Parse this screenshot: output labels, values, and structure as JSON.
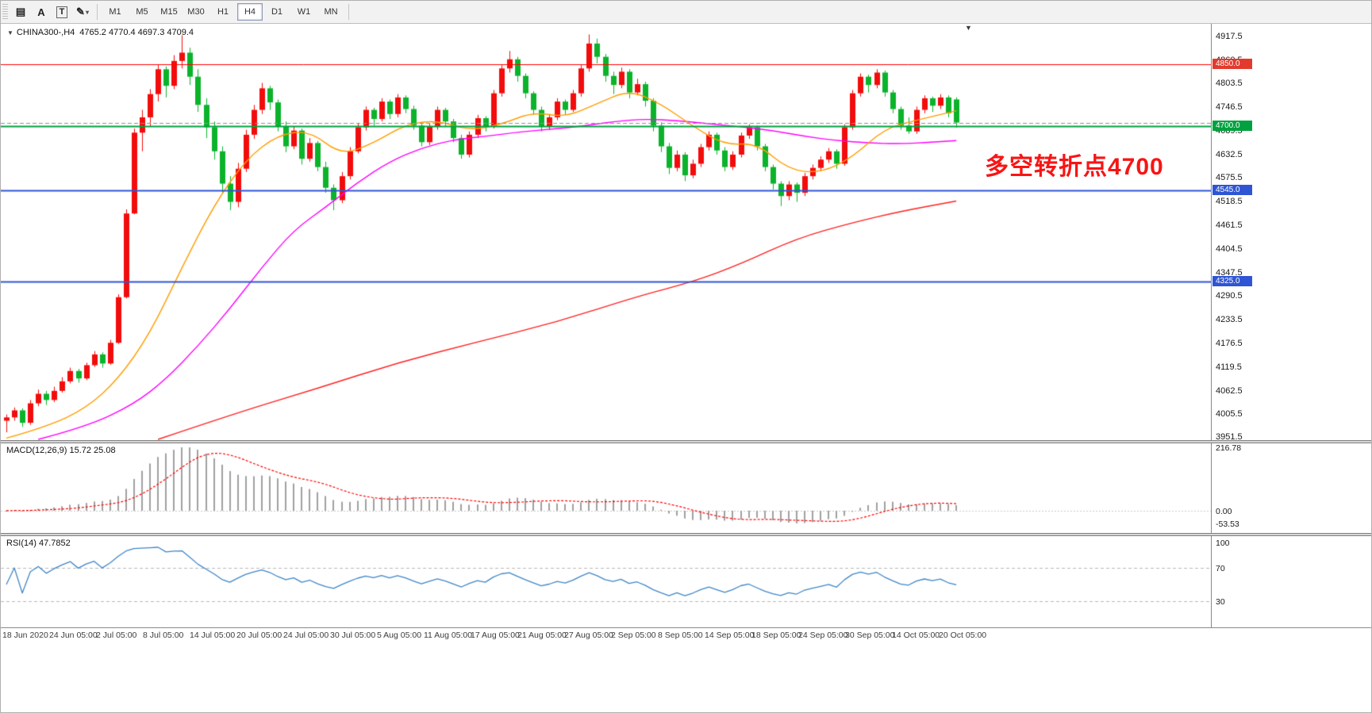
{
  "toolbar": {
    "tools": [
      {
        "name": "chart-grid-tool",
        "glyph": "▤"
      },
      {
        "name": "label-tool",
        "glyph": "A"
      },
      {
        "name": "text-tool",
        "glyph": "T",
        "boxed": true
      },
      {
        "name": "shapes-tool",
        "glyph": "✎",
        "caret": "▾"
      }
    ],
    "timeframes": [
      "M1",
      "M5",
      "M15",
      "M30",
      "H1",
      "H4",
      "D1",
      "W1",
      "MN"
    ],
    "active_timeframe": "H4"
  },
  "chart_header": {
    "collapse_icon": "▼",
    "symbol": "CHINA300-,H4",
    "ohlc": "4765.2 4770.4 4697.3 4709.4"
  },
  "annotation": {
    "text": "多空转折点4700",
    "color": "#f81414"
  },
  "price_axis": {
    "ticks": [
      "4917.5",
      "4860.5",
      "4803.5",
      "4746.5",
      "4689.5",
      "4632.5",
      "4575.5",
      "4518.5",
      "4461.5",
      "4404.5",
      "4347.5",
      "4290.5",
      "4233.5",
      "4176.5",
      "4119.5",
      "4062.5",
      "4005.5",
      "3951.5"
    ],
    "badges": [
      {
        "label": "4850.0",
        "price": 4850,
        "color": "#e23b2e"
      },
      {
        "label": "4700.0",
        "price": 4700,
        "color": "#00a13e"
      },
      {
        "label": "4545.0",
        "price": 4545,
        "color": "#2f55d4"
      },
      {
        "label": "4325.0",
        "price": 4325,
        "color": "#2f55d4"
      }
    ]
  },
  "time_axis": {
    "labels": [
      "18 Jun 2020",
      "24 Jun 05:00",
      "2 Jul 05:00",
      "8 Jul 05:00",
      "14 Jul 05:00",
      "20 Jul 05:00",
      "24 Jul 05:00",
      "30 Jul 05:00",
      "5 Aug 05:00",
      "11 Aug 05:00",
      "17 Aug 05:00",
      "21 Aug 05:00",
      "27 Aug 05:00",
      "2 Sep 05:00",
      "8 Sep 05:00",
      "14 Sep 05:00",
      "18 Sep 05:00",
      "24 Sep 05:00",
      "30 Sep 05:00",
      "14 Oct 05:00",
      "20 Oct 05:00"
    ]
  },
  "macd_panel": {
    "label": "MACD(12,26,9) 15.72 25.08",
    "axis_top": "216.78",
    "axis_zero": "0.00",
    "axis_bottom": "-53.53"
  },
  "rsi_panel": {
    "label": "RSI(14) 47.7852",
    "axis": [
      "100",
      "70",
      "30"
    ],
    "levels": [
      70,
      30
    ]
  },
  "colors": {
    "up": "#f20c0c",
    "down": "#0bb32a",
    "macd_hist": "#a0a0a0",
    "macd_signal": "#ff0000",
    "rsi_line": "#3e86c8",
    "level_dash": "#b8b8b8"
  },
  "chart_data": {
    "type": "candlestick",
    "symbol": "CHINA300-",
    "timeframe": "H4",
    "last_ohlc": {
      "open": 4765.2,
      "high": 4770.4,
      "low": 4697.3,
      "close": 4709.4
    },
    "y_range": [
      3945,
      4940
    ],
    "horizontal_lines": [
      {
        "price": 4850,
        "color": "#ff0000",
        "width": 1
      },
      {
        "price": 4709.4,
        "color": "#909090",
        "width": 1,
        "dash": true
      },
      {
        "price": 4700,
        "color": "#00a13e",
        "width": 2
      },
      {
        "price": 4545,
        "color": "#2f55d4",
        "width": 2
      },
      {
        "price": 4325,
        "color": "#2f55d4",
        "width": 2
      }
    ],
    "moving_averages": [
      {
        "name": "ma-fast",
        "color": "#ff9d00",
        "points": [
          [
            0,
            3948
          ],
          [
            5,
            3975
          ],
          [
            10,
            4020
          ],
          [
            14,
            4090
          ],
          [
            18,
            4200
          ],
          [
            22,
            4360
          ],
          [
            26,
            4510
          ],
          [
            30,
            4620
          ],
          [
            34,
            4680
          ],
          [
            38,
            4690
          ],
          [
            42,
            4630
          ],
          [
            46,
            4660
          ],
          [
            50,
            4705
          ],
          [
            54,
            4715
          ],
          [
            58,
            4690
          ],
          [
            62,
            4705
          ],
          [
            66,
            4735
          ],
          [
            70,
            4722
          ],
          [
            74,
            4755
          ],
          [
            78,
            4788
          ],
          [
            82,
            4755
          ],
          [
            86,
            4700
          ],
          [
            90,
            4655
          ],
          [
            94,
            4660
          ],
          [
            98,
            4595
          ],
          [
            102,
            4588
          ],
          [
            106,
            4625
          ],
          [
            110,
            4695
          ],
          [
            114,
            4715
          ],
          [
            119,
            4738
          ]
        ]
      },
      {
        "name": "ma-mid",
        "color": "#ff00ff",
        "points": [
          [
            4,
            3945
          ],
          [
            10,
            3975
          ],
          [
            16,
            4030
          ],
          [
            20,
            4090
          ],
          [
            24,
            4170
          ],
          [
            28,
            4260
          ],
          [
            32,
            4360
          ],
          [
            36,
            4450
          ],
          [
            40,
            4505
          ],
          [
            44,
            4565
          ],
          [
            48,
            4615
          ],
          [
            52,
            4648
          ],
          [
            56,
            4668
          ],
          [
            60,
            4676
          ],
          [
            64,
            4686
          ],
          [
            68,
            4693
          ],
          [
            72,
            4700
          ],
          [
            76,
            4712
          ],
          [
            80,
            4718
          ],
          [
            84,
            4714
          ],
          [
            88,
            4707
          ],
          [
            92,
            4699
          ],
          [
            96,
            4690
          ],
          [
            100,
            4676
          ],
          [
            104,
            4666
          ],
          [
            108,
            4660
          ],
          [
            112,
            4658
          ],
          [
            116,
            4662
          ],
          [
            119,
            4666
          ]
        ]
      },
      {
        "name": "ma-slow",
        "color": "#ff2020",
        "points": [
          [
            19,
            3945
          ],
          [
            29,
            4010
          ],
          [
            39,
            4068
          ],
          [
            49,
            4130
          ],
          [
            59,
            4180
          ],
          [
            69,
            4228
          ],
          [
            79,
            4290
          ],
          [
            86,
            4325
          ],
          [
            92,
            4368
          ],
          [
            99,
            4430
          ],
          [
            106,
            4468
          ],
          [
            112,
            4495
          ],
          [
            119,
            4520
          ]
        ]
      }
    ],
    "indicators": {
      "macd": {
        "params": [
          12,
          26,
          9
        ],
        "values": [
          15.72,
          25.08
        ]
      },
      "rsi": {
        "params": [
          14
        ],
        "value": 47.7852
      }
    },
    "candles": [
      [
        3990,
        4005,
        3962,
        3998
      ],
      [
        3998,
        4022,
        3990,
        4015
      ],
      [
        4015,
        4020,
        3975,
        3985
      ],
      [
        3985,
        4040,
        3980,
        4032
      ],
      [
        4032,
        4065,
        4025,
        4055
      ],
      [
        4055,
        4062,
        4028,
        4040
      ],
      [
        4040,
        4072,
        4035,
        4062
      ],
      [
        4062,
        4095,
        4058,
        4085
      ],
      [
        4085,
        4118,
        4080,
        4110
      ],
      [
        4110,
        4115,
        4082,
        4092
      ],
      [
        4092,
        4130,
        4088,
        4124
      ],
      [
        4124,
        4158,
        4120,
        4150
      ],
      [
        4150,
        4155,
        4118,
        4128
      ],
      [
        4128,
        4185,
        4125,
        4178
      ],
      [
        4178,
        4295,
        4175,
        4288
      ],
      [
        4288,
        4500,
        4285,
        4490
      ],
      [
        4490,
        4695,
        4488,
        4685
      ],
      [
        4685,
        4740,
        4640,
        4722
      ],
      [
        4722,
        4790,
        4700,
        4778
      ],
      [
        4778,
        4850,
        4760,
        4838
      ],
      [
        4838,
        4845,
        4770,
        4798
      ],
      [
        4798,
        4872,
        4790,
        4858
      ],
      [
        4858,
        4920,
        4840,
        4878
      ],
      [
        4878,
        4890,
        4800,
        4820
      ],
      [
        4820,
        4838,
        4735,
        4752
      ],
      [
        4752,
        4768,
        4672,
        4698
      ],
      [
        4698,
        4712,
        4620,
        4640
      ],
      [
        4640,
        4652,
        4540,
        4562
      ],
      [
        4562,
        4580,
        4498,
        4518
      ],
      [
        4518,
        4612,
        4505,
        4598
      ],
      [
        4598,
        4692,
        4590,
        4680
      ],
      [
        4680,
        4752,
        4670,
        4740
      ],
      [
        4740,
        4805,
        4730,
        4792
      ],
      [
        4792,
        4798,
        4740,
        4758
      ],
      [
        4758,
        4765,
        4688,
        4700
      ],
      [
        4700,
        4712,
        4638,
        4652
      ],
      [
        4652,
        4700,
        4645,
        4690
      ],
      [
        4690,
        4695,
        4608,
        4622
      ],
      [
        4622,
        4672,
        4615,
        4660
      ],
      [
        4660,
        4665,
        4592,
        4602
      ],
      [
        4602,
        4615,
        4540,
        4552
      ],
      [
        4552,
        4560,
        4498,
        4522
      ],
      [
        4522,
        4590,
        4515,
        4580
      ],
      [
        4580,
        4650,
        4572,
        4640
      ],
      [
        4640,
        4708,
        4635,
        4698
      ],
      [
        4698,
        4748,
        4690,
        4740
      ],
      [
        4740,
        4745,
        4702,
        4718
      ],
      [
        4718,
        4768,
        4712,
        4760
      ],
      [
        4760,
        4765,
        4718,
        4730
      ],
      [
        4730,
        4778,
        4722,
        4770
      ],
      [
        4770,
        4775,
        4732,
        4742
      ],
      [
        4742,
        4750,
        4692,
        4702
      ],
      [
        4702,
        4710,
        4652,
        4662
      ],
      [
        4662,
        4708,
        4655,
        4700
      ],
      [
        4700,
        4748,
        4692,
        4740
      ],
      [
        4740,
        4745,
        4700,
        4712
      ],
      [
        4712,
        4718,
        4662,
        4672
      ],
      [
        4672,
        4680,
        4622,
        4632
      ],
      [
        4632,
        4688,
        4625,
        4680
      ],
      [
        4680,
        4728,
        4672,
        4720
      ],
      [
        4720,
        4725,
        4688,
        4700
      ],
      [
        4700,
        4788,
        4695,
        4780
      ],
      [
        4780,
        4848,
        4772,
        4840
      ],
      [
        4840,
        4882,
        4830,
        4862
      ],
      [
        4862,
        4868,
        4808,
        4822
      ],
      [
        4822,
        4828,
        4768,
        4780
      ],
      [
        4780,
        4785,
        4728,
        4740
      ],
      [
        4740,
        4748,
        4688,
        4700
      ],
      [
        4700,
        4730,
        4692,
        4722
      ],
      [
        4722,
        4768,
        4715,
        4760
      ],
      [
        4760,
        4765,
        4728,
        4740
      ],
      [
        4740,
        4788,
        4735,
        4780
      ],
      [
        4780,
        4848,
        4772,
        4840
      ],
      [
        4840,
        4922,
        4832,
        4900
      ],
      [
        4900,
        4912,
        4852,
        4868
      ],
      [
        4868,
        4875,
        4808,
        4822
      ],
      [
        4822,
        4832,
        4778,
        4800
      ],
      [
        4800,
        4842,
        4792,
        4832
      ],
      [
        4832,
        4838,
        4768,
        4782
      ],
      [
        4782,
        4815,
        4775,
        4802
      ],
      [
        4802,
        4808,
        4748,
        4762
      ],
      [
        4762,
        4768,
        4688,
        4702
      ],
      [
        4702,
        4710,
        4638,
        4652
      ],
      [
        4652,
        4660,
        4585,
        4600
      ],
      [
        4600,
        4642,
        4592,
        4632
      ],
      [
        4632,
        4638,
        4568,
        4582
      ],
      [
        4582,
        4620,
        4575,
        4610
      ],
      [
        4610,
        4658,
        4602,
        4650
      ],
      [
        4650,
        4688,
        4642,
        4680
      ],
      [
        4680,
        4685,
        4632,
        4642
      ],
      [
        4642,
        4650,
        4592,
        4602
      ],
      [
        4602,
        4640,
        4595,
        4632
      ],
      [
        4632,
        4685,
        4625,
        4678
      ],
      [
        4678,
        4705,
        4670,
        4698
      ],
      [
        4698,
        4702,
        4642,
        4652
      ],
      [
        4652,
        4658,
        4592,
        4602
      ],
      [
        4602,
        4608,
        4548,
        4562
      ],
      [
        4562,
        4568,
        4508,
        4532
      ],
      [
        4532,
        4568,
        4522,
        4560
      ],
      [
        4560,
        4565,
        4518,
        4540
      ],
      [
        4540,
        4588,
        4532,
        4580
      ],
      [
        4580,
        4608,
        4572,
        4600
      ],
      [
        4600,
        4628,
        4592,
        4620
      ],
      [
        4620,
        4648,
        4612,
        4640
      ],
      [
        4640,
        4645,
        4598,
        4610
      ],
      [
        4610,
        4705,
        4605,
        4698
      ],
      [
        4698,
        4788,
        4692,
        4780
      ],
      [
        4780,
        4828,
        4772,
        4820
      ],
      [
        4820,
        4825,
        4782,
        4800
      ],
      [
        4800,
        4838,
        4792,
        4830
      ],
      [
        4830,
        4835,
        4772,
        4782
      ],
      [
        4782,
        4788,
        4732,
        4742
      ],
      [
        4742,
        4748,
        4692,
        4702
      ],
      [
        4702,
        4722,
        4682,
        4688
      ],
      [
        4688,
        4748,
        4682,
        4740
      ],
      [
        4740,
        4775,
        4732,
        4768
      ],
      [
        4768,
        4772,
        4735,
        4750
      ],
      [
        4750,
        4778,
        4742,
        4770
      ],
      [
        4770,
        4775,
        4722,
        4732
      ],
      [
        4765.2,
        4770.4,
        4697.3,
        4709.4
      ]
    ]
  }
}
